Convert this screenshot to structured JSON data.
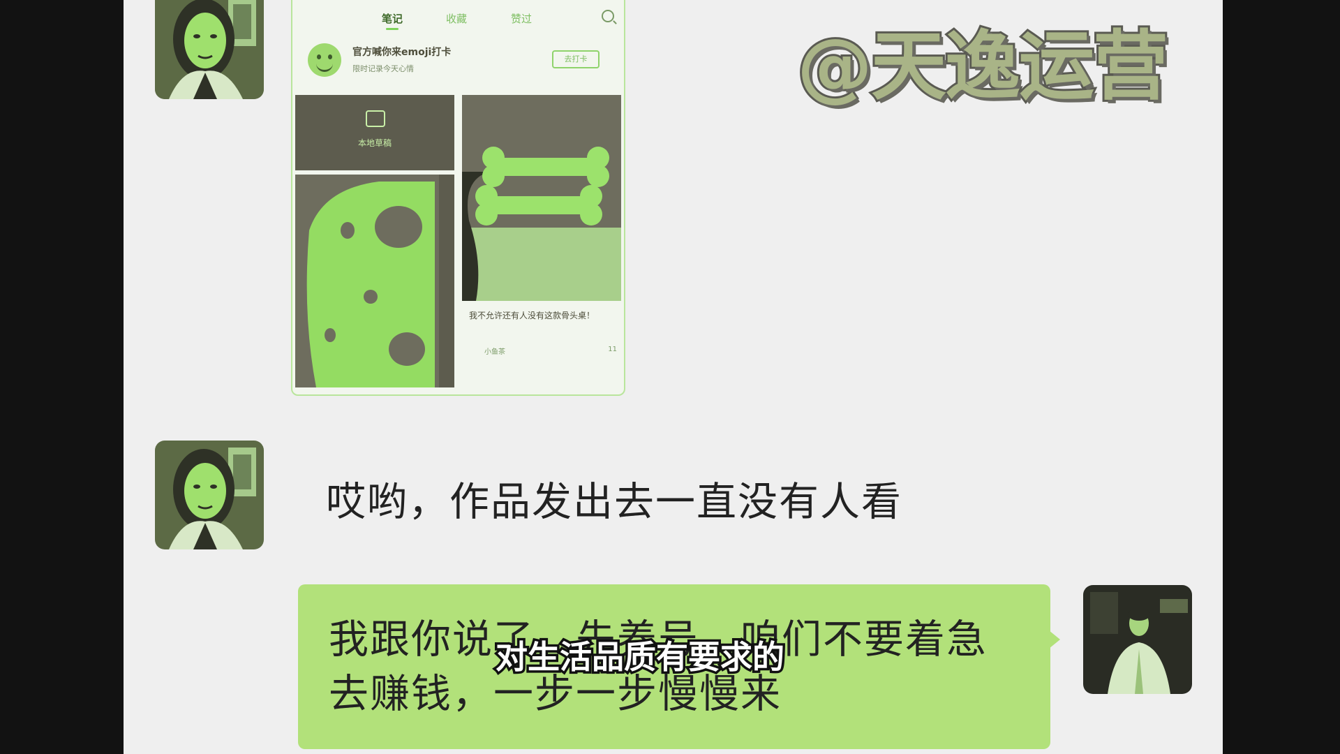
{
  "watermark": "@天逸运营",
  "phone_screenshot": {
    "tabs": [
      "笔记",
      "收藏",
      "赞过"
    ],
    "active_tab": "笔记",
    "banner_title": "官方喊你来emoji打卡",
    "banner_subtitle": "限时记录今天心情",
    "banner_button": "去打卡",
    "draft_label": "本地草稿",
    "note_caption": "我不允许还有人没有这款骨头桌！",
    "note_author": "小鱼茶",
    "note_likes": "11"
  },
  "messages": [
    {
      "side": "left",
      "type": "image",
      "avatar": "female-avatar"
    },
    {
      "side": "left",
      "type": "text",
      "text": "哎哟，作品发出去一直没有人看",
      "avatar": "female-avatar"
    },
    {
      "side": "right",
      "type": "text",
      "text": "我跟你说了，先养号，咱们不要着急去赚钱，一步一步慢慢来",
      "avatar": "male-avatar"
    }
  ],
  "subtitle": "对生活品质有要求的",
  "colors": {
    "canvas": "#efefef",
    "outer": "#121212",
    "bubble_green": "#b2e17a",
    "text": "#222222"
  }
}
